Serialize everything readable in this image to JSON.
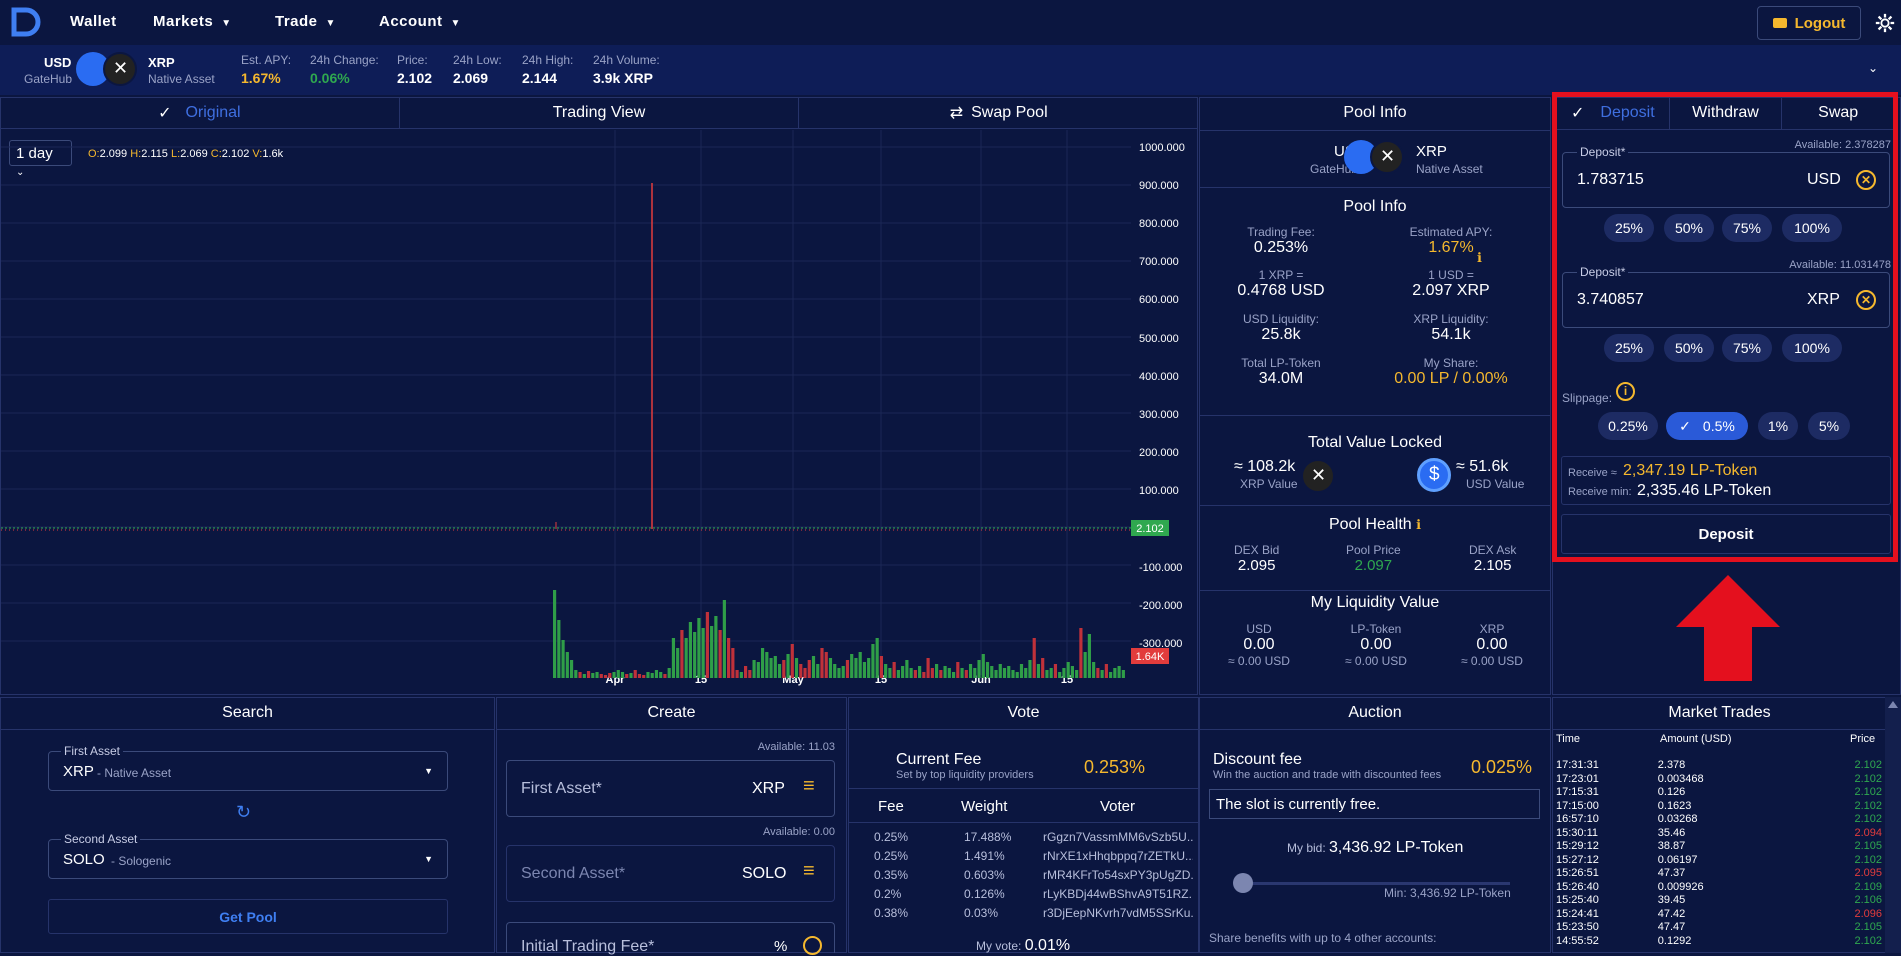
{
  "nav": {
    "wallet": "Wallet",
    "markets": "Markets",
    "trade": "Trade",
    "account": "Account",
    "logout": "Logout"
  },
  "ticker": {
    "asset1": "USD",
    "asset1_issuer": "GateHub",
    "asset2": "XRP",
    "asset2_issuer": "Native Asset",
    "apy_label": "Est. APY:",
    "apy": "1.67%",
    "change_label": "24h Change:",
    "change": "0.06%",
    "price_label": "Price:",
    "price": "2.102",
    "low_label": "24h Low:",
    "low": "2.069",
    "high_label": "24h High:",
    "high": "2.144",
    "vol_label": "24h Volume:",
    "vol": "3.9k XRP"
  },
  "chart": {
    "tabs": [
      "Original",
      "Trading View",
      "Swap Pool"
    ],
    "interval": "1 day",
    "ohlc": {
      "o_label": "O:",
      "o": "2.099",
      "h_label": "H:",
      "h": "2.115",
      "l_label": "L:",
      "l": "2.069",
      "c_label": "C:",
      "c": "2.102",
      "v_label": "V:",
      "v": "1.6k"
    },
    "y_ticks": [
      "1000.000",
      "900.000",
      "800.000",
      "700.000",
      "600.000",
      "500.000",
      "400.000",
      "300.000",
      "200.000",
      "100.000",
      "-100.000",
      "-200.000",
      "-300.000"
    ],
    "x_ticks": [
      "Apr",
      "15",
      "May",
      "15",
      "Jun",
      "15"
    ],
    "price_tag": "2.102",
    "vol_tag": "1.64K"
  },
  "pool": {
    "title": "Pool Info",
    "a1": "USD",
    "a1_issuer": "GateHub",
    "a2": "XRP",
    "a2_issuer": "Native Asset",
    "sub": "Pool Info",
    "fee_label": "Trading Fee:",
    "fee": "0.253%",
    "apy_label": "Estimated APY:",
    "apy": "1.67%",
    "xrp_label": "1 XRP =",
    "xrp": "0.4768 USD",
    "usd_label": "1 USD =",
    "usd": "2.097 XRP",
    "usdliq_label": "USD Liquidity:",
    "usdliq": "25.8k",
    "xrpliq_label": "XRP Liquidity:",
    "xrpliq": "54.1k",
    "lp_label": "Total LP-Token",
    "lp": "34.0M",
    "share_label": "My Share:",
    "share": "0.00 LP / 0.00%",
    "tvl_title": "Total Value Locked",
    "tvl_xrp": "≈ 108.2k",
    "tvl_xrp_label": "XRP Value",
    "tvl_usd": "≈ 51.6k",
    "tvl_usd_label": "USD Value",
    "health_title": "Pool Health",
    "bid_label": "DEX Bid",
    "bid": "2.095",
    "pp_label": "Pool Price",
    "pp": "2.097",
    "ask_label": "DEX Ask",
    "ask": "2.105",
    "myliq_title": "My Liquidity Value",
    "m_usd_label": "USD",
    "m_usd": "0.00",
    "m_lp_label": "LP-Token",
    "m_lp": "0.00",
    "m_xrp_label": "XRP",
    "m_xrp": "0.00",
    "m_usd_sub": "≈ 0.00 USD",
    "m_lp_sub": "≈ 0.00 USD",
    "m_xrp_sub": "≈ 0.00 USD"
  },
  "deposit": {
    "tabs": [
      "Deposit",
      "Withdraw",
      "Swap"
    ],
    "f1_label": "Deposit*",
    "f1_avail": "Available: 2.378287",
    "f1_value": "1.783715",
    "f1_cur": "USD",
    "f2_label": "Deposit*",
    "f2_avail": "Available: 11.031478",
    "f2_value": "3.740857",
    "f2_cur": "XRP",
    "pcts": [
      "25%",
      "50%",
      "75%",
      "100%"
    ],
    "slip_label": "Slippage:",
    "slips": [
      "0.25%",
      "0.5%",
      "1%",
      "5%"
    ],
    "recv_label": "Receive ≈",
    "recv": "2,347.19 LP-Token",
    "recvmin_label": "Receive min:",
    "recvmin": "2,335.46 LP-Token",
    "btn": "Deposit"
  },
  "search": {
    "title": "Search",
    "first_label": "First Asset",
    "first": "XRP",
    "first_sub": "- Native Asset",
    "second_label": "Second Asset",
    "second": "SOLO",
    "second_sub": "- Sologenic",
    "btn": "Get Pool"
  },
  "create": {
    "title": "Create",
    "avail1": "Available: 11.03",
    "f1": "First Asset*",
    "f1_cur": "XRP",
    "avail2": "Available: 0.00",
    "f2": "Second Asset*",
    "f2_cur": "SOLO",
    "f3": "Initial Trading Fee*",
    "f3_unit": "%"
  },
  "vote": {
    "title": "Vote",
    "cf_label": "Current Fee",
    "cf_sub": "Set by top liquidity providers",
    "cf": "0.253%",
    "h_fee": "Fee",
    "h_weight": "Weight",
    "h_voter": "Voter",
    "rows": [
      {
        "fee": "0.25%",
        "weight": "17.488%",
        "voter": "rGgzn7VassmMM6vSzb5U..."
      },
      {
        "fee": "0.25%",
        "weight": "1.491%",
        "voter": "rNrXE1xHhqbppq7rZETkU..."
      },
      {
        "fee": "0.35%",
        "weight": "0.603%",
        "voter": "rMR4KFrTo54sxPY3pUgZD..."
      },
      {
        "fee": "0.2%",
        "weight": "0.126%",
        "voter": "rLyKBDj44wBShvA9T51RZ..."
      },
      {
        "fee": "0.38%",
        "weight": "0.03%",
        "voter": "r3DjEepNKvrh7vdM5SSrKu..."
      }
    ],
    "myvote_label": "My vote:",
    "myvote": "0.01%"
  },
  "auction": {
    "title": "Auction",
    "df_label": "Discount fee",
    "df_sub": "Win the auction and trade with discounted fees",
    "df": "0.025%",
    "slot": "The slot is currently free.",
    "mybid_label": "My bid:",
    "mybid": "3,436.92 LP-Token",
    "min": "Min: 3,436.92 LP-Token",
    "share": "Share benefits with up to 4 other accounts:"
  },
  "trades": {
    "title": "Market Trades",
    "h_time": "Time",
    "h_amount": "Amount (USD)",
    "h_price": "Price",
    "rows": [
      [
        "17:31:31",
        "2.378",
        "2.102",
        "g"
      ],
      [
        "17:23:01",
        "0.003468",
        "2.102",
        "g"
      ],
      [
        "17:15:31",
        "0.126",
        "2.102",
        "g"
      ],
      [
        "17:15:00",
        "0.1623",
        "2.102",
        "g"
      ],
      [
        "16:57:10",
        "0.03268",
        "2.102",
        "g"
      ],
      [
        "15:30:11",
        "35.46",
        "2.094",
        "r"
      ],
      [
        "15:29:12",
        "38.87",
        "2.105",
        "g"
      ],
      [
        "15:27:12",
        "0.06197",
        "2.102",
        "g"
      ],
      [
        "15:26:51",
        "47.37",
        "2.095",
        "r"
      ],
      [
        "15:26:40",
        "0.009926",
        "2.109",
        "g"
      ],
      [
        "15:25:40",
        "39.45",
        "2.106",
        "g"
      ],
      [
        "15:24:41",
        "47.42",
        "2.096",
        "r"
      ],
      [
        "15:23:50",
        "47.47",
        "2.105",
        "g"
      ],
      [
        "14:55:52",
        "0.1292",
        "2.102",
        "g"
      ]
    ]
  },
  "colors": {
    "accent": "#f5b82e",
    "green": "#2fa84f",
    "red": "#e23c3c",
    "blue": "#2a5ad8"
  }
}
